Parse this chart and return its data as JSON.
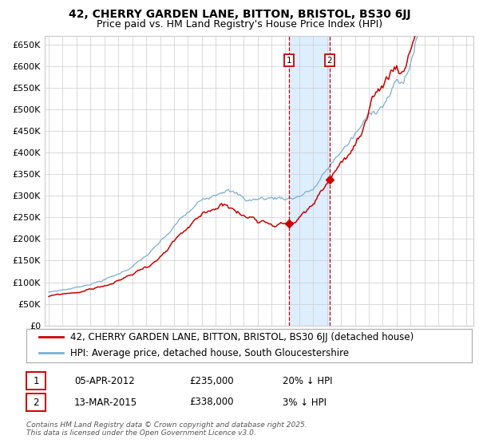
{
  "title": "42, CHERRY GARDEN LANE, BITTON, BRISTOL, BS30 6JJ",
  "subtitle": "Price paid vs. HM Land Registry's House Price Index (HPI)",
  "ylabel_vals": [
    "£0",
    "£50K",
    "£100K",
    "£150K",
    "£200K",
    "£250K",
    "£300K",
    "£350K",
    "£400K",
    "£450K",
    "£500K",
    "£550K",
    "£600K",
    "£650K"
  ],
  "yticks": [
    0,
    50000,
    100000,
    150000,
    200000,
    250000,
    300000,
    350000,
    400000,
    450000,
    500000,
    550000,
    600000,
    650000
  ],
  "ylim": [
    0,
    670000
  ],
  "xlim_start": 1994.7,
  "xlim_end": 2025.5,
  "transaction1_date": 2012.25,
  "transaction1_price": 235000,
  "transaction2_date": 2015.19,
  "transaction2_price": 338000,
  "red_line_color": "#cc0000",
  "blue_line_color": "#7ab0d4",
  "shaded_region_color": "#ddeeff",
  "dashed_line_color": "#cc0000",
  "grid_color": "#cccccc",
  "background_color": "#ffffff",
  "legend1_text": "42, CHERRY GARDEN LANE, BITTON, BRISTOL, BS30 6JJ (detached house)",
  "legend2_text": "HPI: Average price, detached house, South Gloucestershire",
  "table_row1": [
    "1",
    "05-APR-2012",
    "£235,000",
    "20% ↓ HPI"
  ],
  "table_row2": [
    "2",
    "13-MAR-2015",
    "£338,000",
    "3% ↓ HPI"
  ],
  "footer_text": "Contains HM Land Registry data © Crown copyright and database right 2025.\nThis data is licensed under the Open Government Licence v3.0.",
  "title_fontsize": 10,
  "subtitle_fontsize": 9,
  "axis_fontsize": 8,
  "legend_fontsize": 8.5
}
